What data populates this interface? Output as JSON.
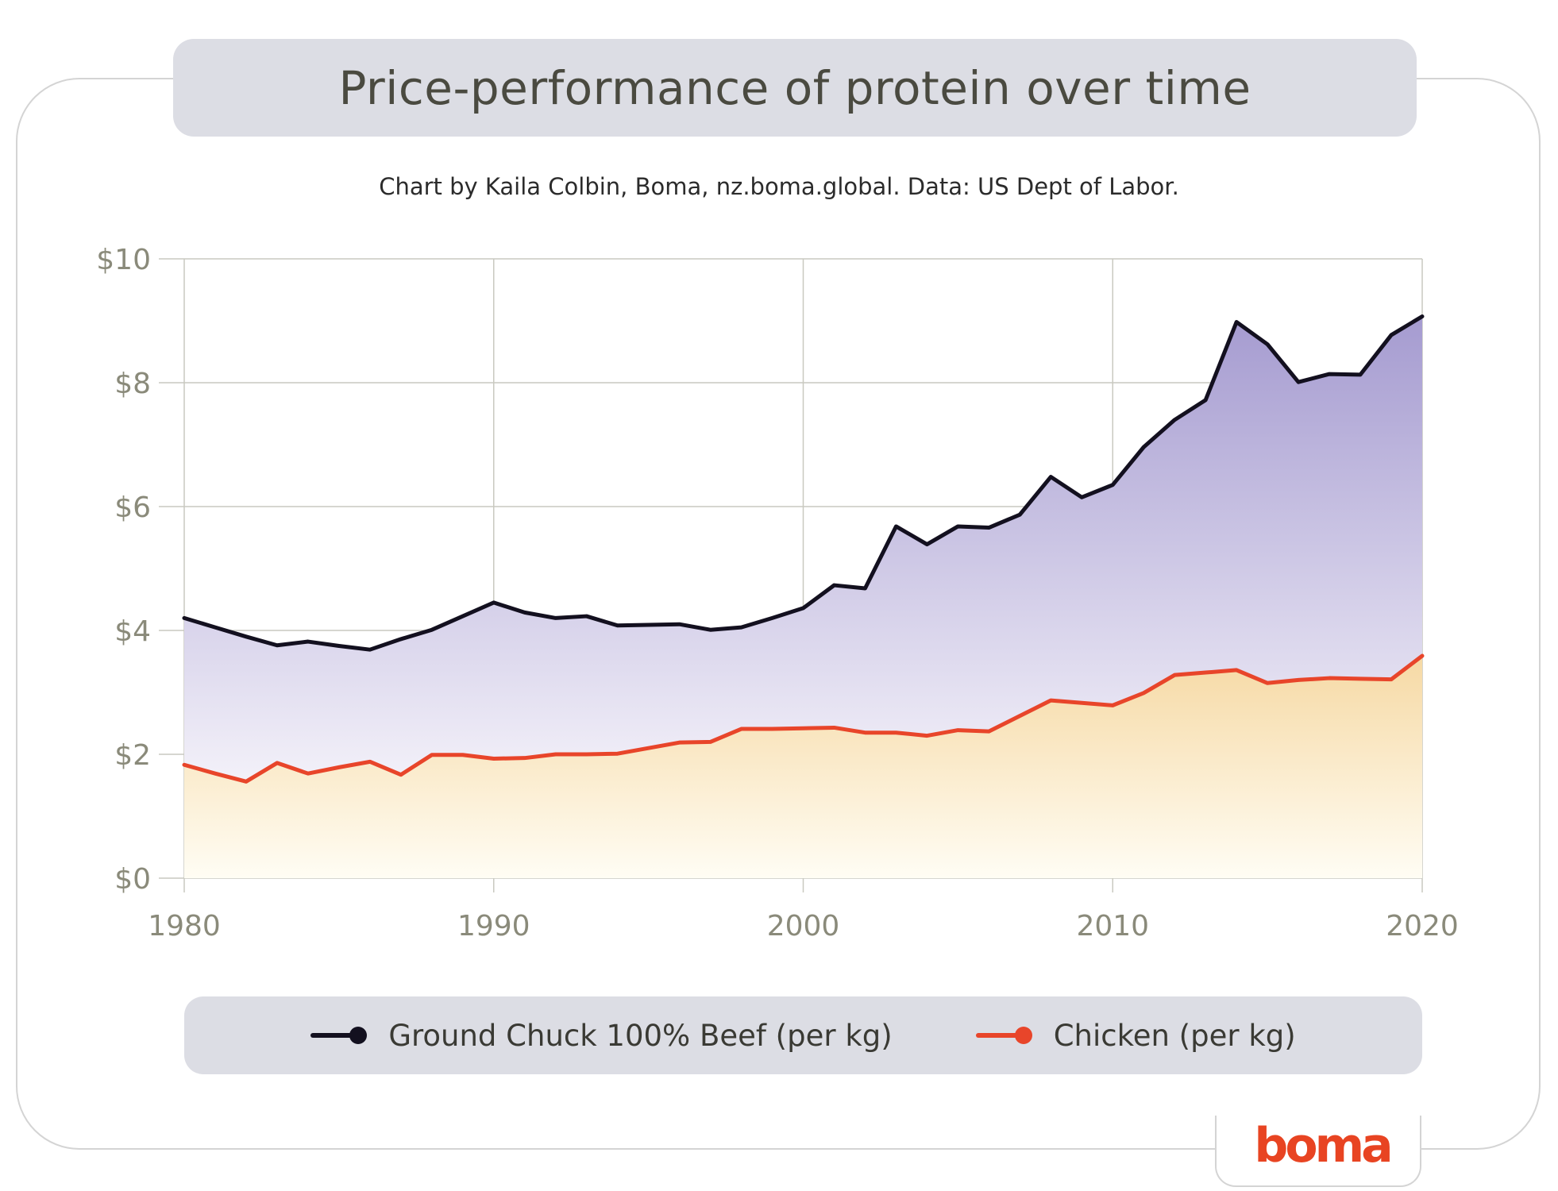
{
  "title": "Price-performance of protein over time",
  "subtitle": "Chart by Kaila Colbin, Boma, nz.boma.global. Data: US Dept of Labor.",
  "logo": "boma",
  "colors": {
    "beef": "#13101f",
    "chicken": "#e8452a",
    "beef_fill_top": "#a59bd0",
    "beef_fill_bottom": "#f3f1f9",
    "chicken_fill_top": "#f6d9a4",
    "chicken_fill_bottom": "#fffdf4",
    "grid": "#c9c9c0",
    "tick_text": "#8a8a7a"
  },
  "legend": [
    {
      "label": "Ground Chuck 100% Beef (per kg)",
      "color": "#13101f"
    },
    {
      "label": "Chicken (per kg)",
      "color": "#e8452a"
    }
  ],
  "chart_data": {
    "type": "area",
    "title": "Price-performance of protein over time",
    "xlabel": "",
    "ylabel": "",
    "xlim": [
      1980,
      2020
    ],
    "ylim": [
      0,
      10
    ],
    "grid": true,
    "legend_position": "bottom",
    "x_ticks": [
      1980,
      1990,
      2000,
      2010,
      2020
    ],
    "y_ticks": [
      0,
      2,
      4,
      6,
      8,
      10
    ],
    "y_tick_labels": [
      "$0",
      "$2",
      "$4",
      "$6",
      "$8",
      "$10"
    ],
    "x": [
      1980,
      1981,
      1982,
      1983,
      1984,
      1985,
      1986,
      1987,
      1988,
      1989,
      1990,
      1991,
      1992,
      1993,
      1994,
      1995,
      1996,
      1997,
      1998,
      1999,
      2000,
      2001,
      2002,
      2003,
      2004,
      2005,
      2006,
      2007,
      2008,
      2009,
      2010,
      2011,
      2012,
      2013,
      2014,
      2015,
      2016,
      2017,
      2018,
      2019,
      2020
    ],
    "series": [
      {
        "name": "Ground Chuck 100% Beef (per kg)",
        "values": [
          4.2,
          4.05,
          3.9,
          3.76,
          3.82,
          3.75,
          3.69,
          3.86,
          4.01,
          4.23,
          4.45,
          4.29,
          4.2,
          4.23,
          4.08,
          4.09,
          4.1,
          4.01,
          4.05,
          4.2,
          4.36,
          4.73,
          4.68,
          5.68,
          5.39,
          5.68,
          5.66,
          5.87,
          6.48,
          6.15,
          6.35,
          6.96,
          7.4,
          7.72,
          8.98,
          8.62,
          8.01,
          8.14,
          8.13,
          8.77,
          9.07
        ]
      },
      {
        "name": "Chicken (per kg)",
        "values": [
          1.83,
          1.69,
          1.56,
          1.86,
          1.69,
          1.79,
          1.88,
          1.67,
          1.99,
          1.99,
          1.93,
          1.94,
          2.0,
          2.0,
          2.01,
          2.1,
          2.19,
          2.2,
          2.41,
          2.41,
          2.42,
          2.43,
          2.35,
          2.35,
          2.3,
          2.39,
          2.37,
          2.62,
          2.87,
          2.83,
          2.79,
          2.99,
          3.28,
          3.32,
          3.36,
          3.15,
          3.2,
          3.23,
          3.22,
          3.21,
          3.59
        ]
      }
    ]
  }
}
